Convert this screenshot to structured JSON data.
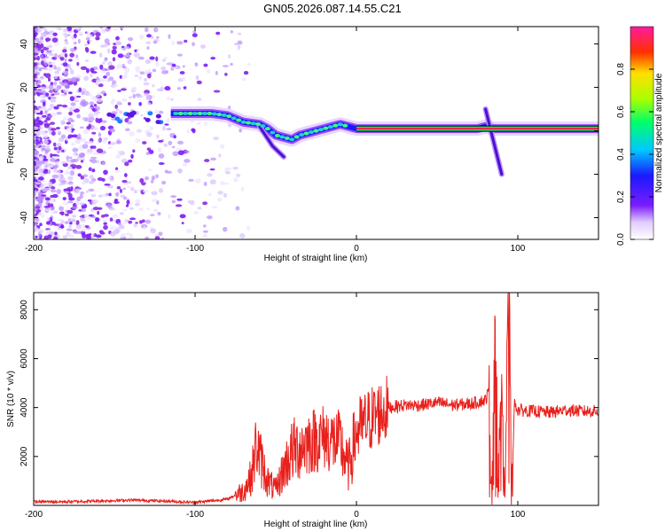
{
  "title": "GN05.2026.087.14.55.C21",
  "chart_data": [
    {
      "type": "heatmap",
      "title": "",
      "xlabel": "Height of straight line (km)",
      "ylabel": "Frequency (Hz)",
      "xlim": [
        -200,
        150
      ],
      "ylim": [
        -50,
        48
      ],
      "xticks": [
        -200,
        -100,
        0,
        100
      ],
      "yticks": [
        -40,
        -20,
        0,
        20,
        40
      ],
      "colorbar": {
        "label": "Normalized spectral amplitude",
        "range": [
          0,
          1
        ],
        "ticks": [
          0.0,
          0.2,
          0.4,
          0.6,
          0.8
        ]
      },
      "ridge": {
        "name": "dominant frequency track",
        "x": [
          -115,
          -100,
          -90,
          -80,
          -70,
          -60,
          -55,
          -50,
          -45,
          -40,
          -35,
          -30,
          -20,
          -10,
          0,
          20,
          40,
          60,
          75,
          80,
          85,
          90,
          95,
          100,
          150
        ],
        "y": [
          8,
          8,
          8,
          7,
          4,
          3,
          1,
          -2,
          -3,
          -4,
          -2,
          -1,
          1,
          3,
          1,
          1,
          1,
          1,
          1,
          2,
          1,
          1,
          1,
          1,
          1
        ]
      },
      "branches": [
        {
          "x": [
            -60,
            -52,
            -45
          ],
          "y": [
            2,
            -7,
            -12
          ]
        },
        {
          "x": [
            80,
            85,
            90
          ],
          "y": [
            10,
            -5,
            -20
          ]
        }
      ]
    },
    {
      "type": "line",
      "title": "",
      "xlabel": "Height of straight line (km)",
      "ylabel": "SNR (10 * v/v)",
      "xlim": [
        -200,
        150
      ],
      "ylim": [
        0,
        8700
      ],
      "xticks": [
        -200,
        -100,
        0,
        100
      ],
      "yticks": [
        2000,
        4000,
        6000,
        8000
      ],
      "series": [
        {
          "name": "SNR",
          "color": "#e8201c",
          "x": [
            -200,
            -180,
            -160,
            -140,
            -120,
            -100,
            -80,
            -70,
            -65,
            -62,
            -60,
            -55,
            -50,
            -45,
            -40,
            -30,
            -20,
            -10,
            -5,
            0,
            10,
            20,
            30,
            40,
            50,
            60,
            70,
            80,
            82,
            84,
            86,
            88,
            90,
            92,
            94,
            95,
            96,
            98,
            100,
            110,
            120,
            130,
            140,
            150
          ],
          "y": [
            150,
            150,
            180,
            220,
            180,
            120,
            250,
            600,
            1200,
            2500,
            2000,
            1000,
            600,
            1500,
            2200,
            2600,
            2800,
            2500,
            1500,
            3000,
            3600,
            4000,
            4100,
            4100,
            4200,
            4100,
            4150,
            4300,
            4700,
            500,
            6800,
            600,
            6400,
            600,
            7800,
            8600,
            500,
            4200,
            3900,
            3850,
            3800,
            3900,
            3850,
            3850
          ]
        }
      ]
    }
  ]
}
